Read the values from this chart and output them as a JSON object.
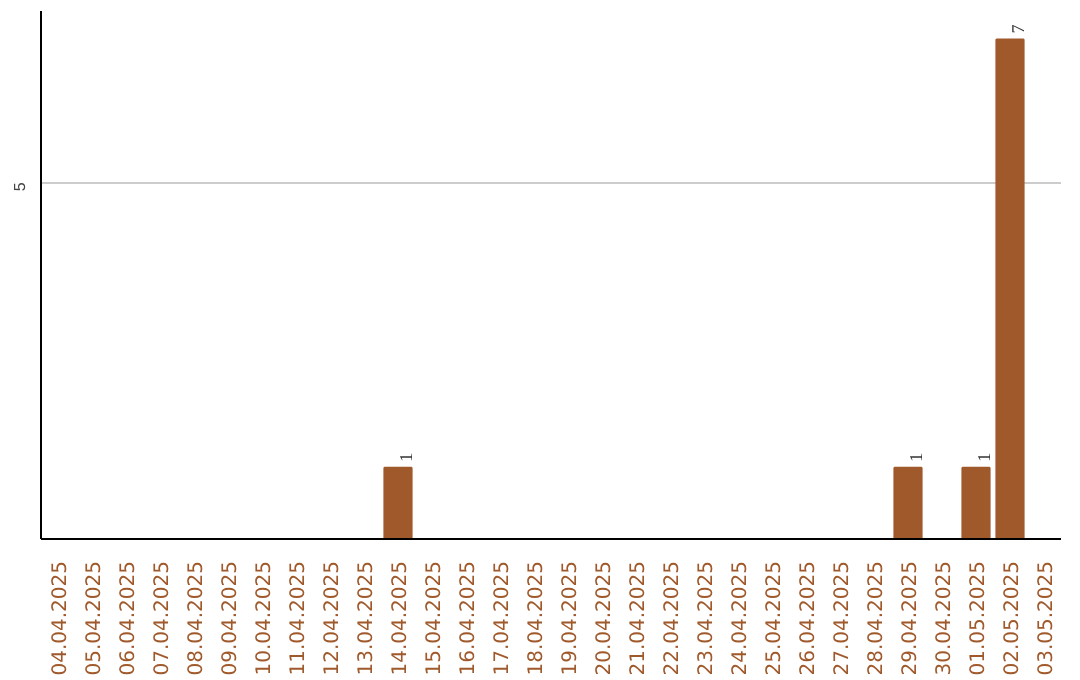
{
  "chart_data": {
    "type": "bar",
    "categories": [
      "04.04.2025",
      "05.04.2025",
      "06.04.2025",
      "07.04.2025",
      "08.04.2025",
      "09.04.2025",
      "10.04.2025",
      "11.04.2025",
      "12.04.2025",
      "13.04.2025",
      "14.04.2025",
      "15.04.2025",
      "16.04.2025",
      "17.04.2025",
      "18.04.2025",
      "19.04.2025",
      "20.04.2025",
      "21.04.2025",
      "22.04.2025",
      "23.04.2025",
      "24.04.2025",
      "25.04.2025",
      "26.04.2025",
      "27.04.2025",
      "28.04.2025",
      "29.04.2025",
      "30.04.2025",
      "01.05.2025",
      "02.05.2025",
      "03.05.2025"
    ],
    "values": [
      0,
      0,
      0,
      0,
      0,
      0,
      0,
      0,
      0,
      0,
      1,
      0,
      0,
      0,
      0,
      0,
      0,
      0,
      0,
      0,
      0,
      0,
      0,
      0,
      0,
      1,
      0,
      1,
      7,
      0
    ],
    "value_labels": [
      null,
      null,
      null,
      null,
      null,
      null,
      null,
      null,
      null,
      null,
      "1",
      null,
      null,
      null,
      null,
      null,
      null,
      null,
      null,
      null,
      null,
      null,
      null,
      null,
      null,
      "1",
      null,
      "1",
      "7",
      null
    ],
    "color": "#a0592b",
    "ylim": [
      0,
      7.4
    ],
    "yticks": [
      5
    ],
    "grid": "y"
  }
}
